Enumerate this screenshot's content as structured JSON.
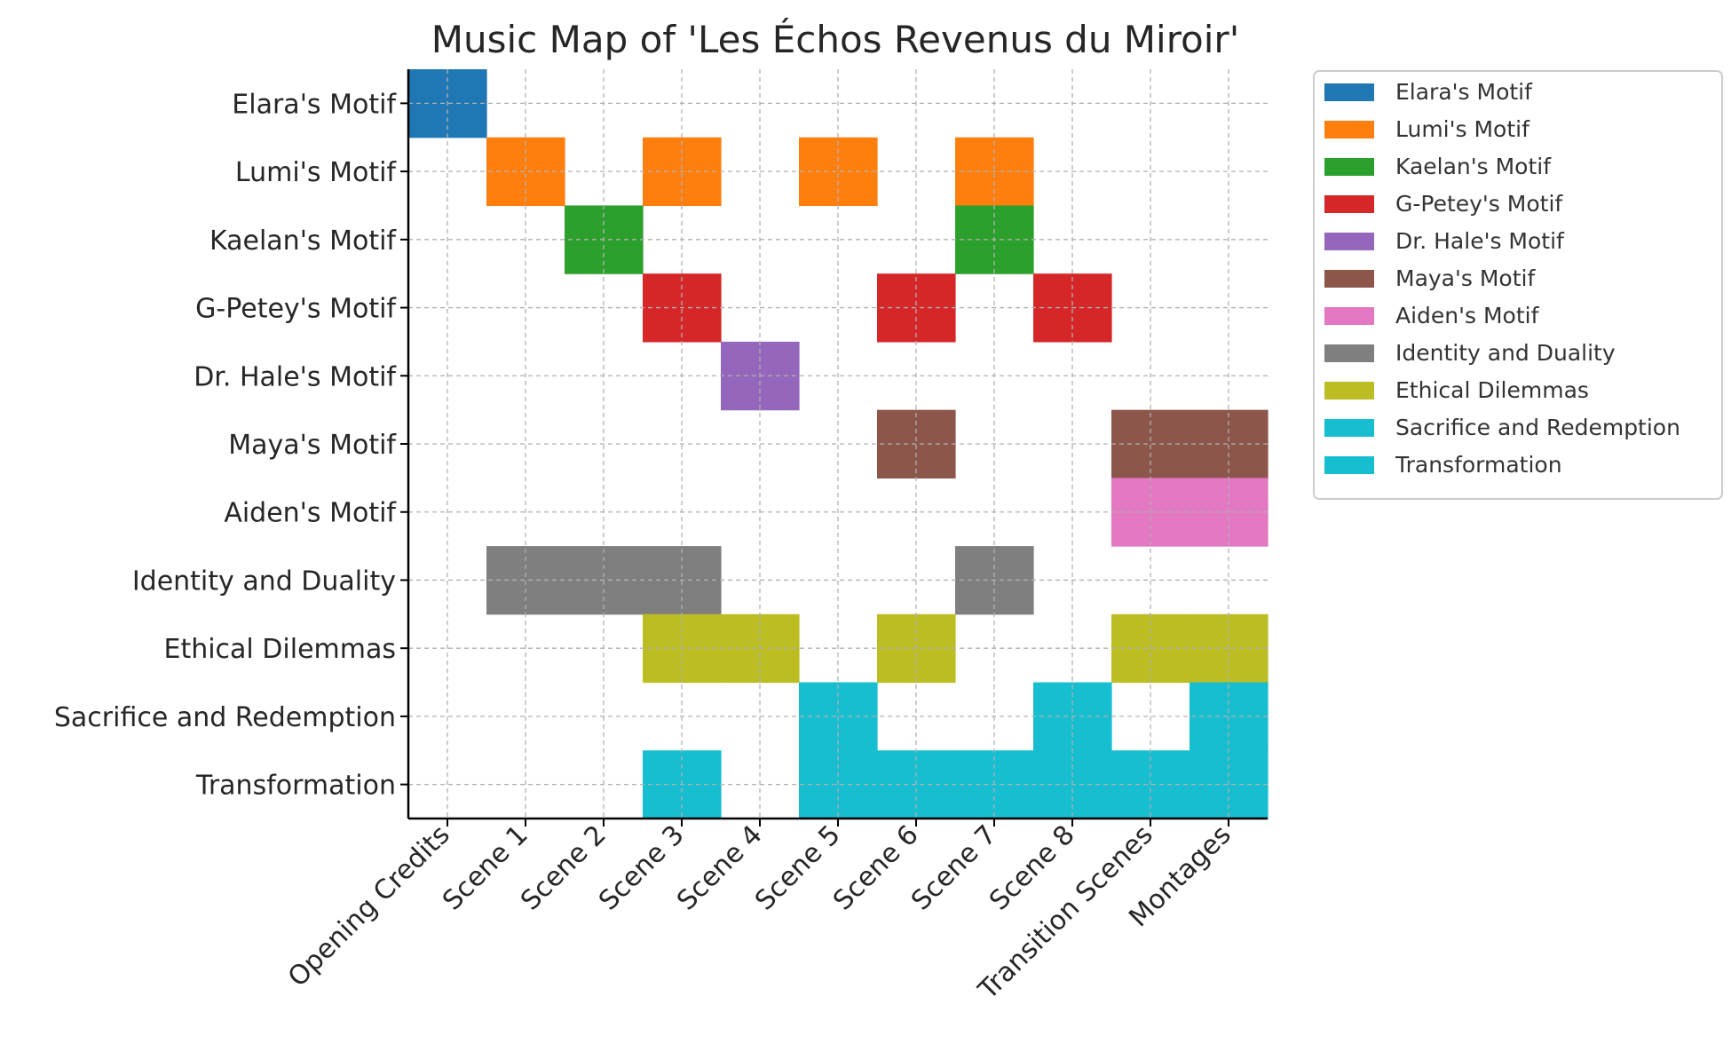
{
  "chart_data": {
    "type": "heatmap",
    "title": "Music Map of 'Les Échos Revenus du Miroir'",
    "xlabel": "",
    "ylabel": "",
    "grid": true,
    "legend_position": "outside-upper-right",
    "categories": [
      "Opening Credits",
      "Scene 1",
      "Scene 2",
      "Scene 3",
      "Scene 4",
      "Scene 5",
      "Scene 6",
      "Scene 7",
      "Scene 8",
      "Transition Scenes",
      "Montages"
    ],
    "series": [
      {
        "name": "Elara's Motif",
        "color": "#1f77b4",
        "values": [
          1,
          0,
          0,
          0,
          0,
          0,
          0,
          0,
          0,
          0,
          0
        ]
      },
      {
        "name": "Lumi's Motif",
        "color": "#ff7f0e",
        "values": [
          0,
          1,
          0,
          1,
          0,
          1,
          0,
          1,
          0,
          0,
          0
        ]
      },
      {
        "name": "Kaelan's Motif",
        "color": "#2ca02c",
        "values": [
          0,
          0,
          1,
          0,
          0,
          0,
          0,
          1,
          0,
          0,
          0
        ]
      },
      {
        "name": "G-Petey's Motif",
        "color": "#d62728",
        "values": [
          0,
          0,
          0,
          1,
          0,
          0,
          1,
          0,
          1,
          0,
          0
        ]
      },
      {
        "name": "Dr. Hale's Motif",
        "color": "#9467bd",
        "values": [
          0,
          0,
          0,
          0,
          1,
          0,
          0,
          0,
          0,
          0,
          0
        ]
      },
      {
        "name": "Maya's Motif",
        "color": "#8c564b",
        "values": [
          0,
          0,
          0,
          0,
          0,
          0,
          1,
          0,
          0,
          1,
          1
        ]
      },
      {
        "name": "Aiden's Motif",
        "color": "#e377c2",
        "values": [
          0,
          0,
          0,
          0,
          0,
          0,
          0,
          0,
          0,
          1,
          1
        ]
      },
      {
        "name": "Identity and Duality",
        "color": "#7f7f7f",
        "values": [
          0,
          1,
          1,
          1,
          0,
          0,
          0,
          1,
          0,
          0,
          0
        ]
      },
      {
        "name": "Ethical Dilemmas",
        "color": "#bcbd22",
        "values": [
          0,
          0,
          0,
          1,
          1,
          0,
          1,
          0,
          0,
          1,
          1
        ]
      },
      {
        "name": "Sacrifice and Redemption",
        "color": "#17becf",
        "values": [
          0,
          0,
          0,
          0,
          0,
          1,
          0,
          0,
          1,
          0,
          1
        ]
      },
      {
        "name": "Transformation",
        "color": "#17becf",
        "values": [
          0,
          0,
          0,
          1,
          0,
          1,
          1,
          1,
          1,
          1,
          1
        ]
      }
    ]
  }
}
